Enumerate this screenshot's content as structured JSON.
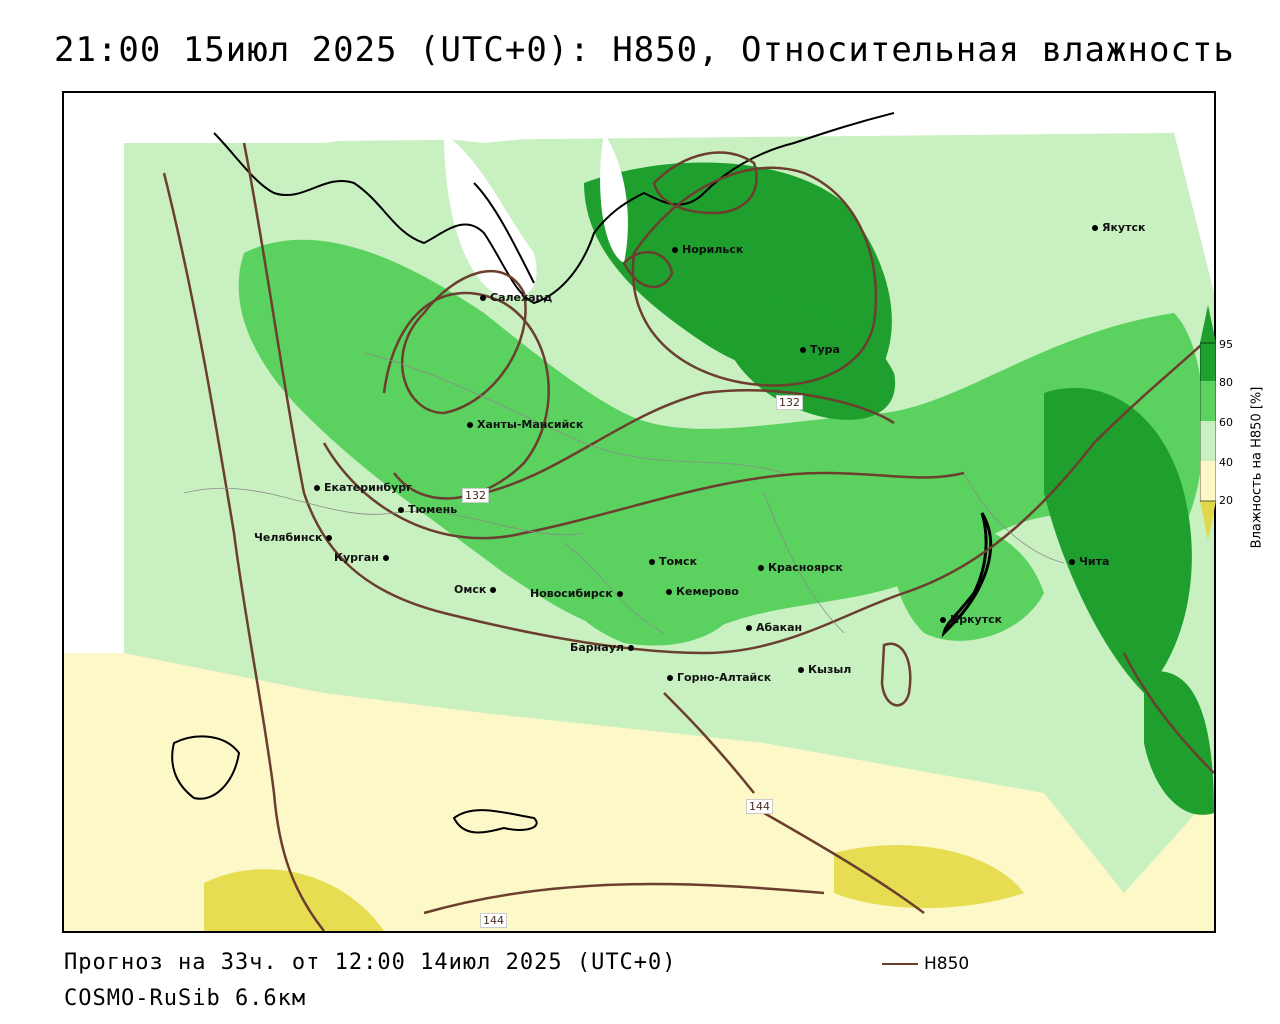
{
  "title": "21:00 15июл 2025 (UTC+0): H850, Относительная влажность",
  "forecast_text": "Прогноз на 33ч. от 12:00 14июл 2025 (UTC+0)",
  "model_text": "COSMO-RuSib 6.6км",
  "legend": {
    "label": "H850",
    "color": "#6b3e2e"
  },
  "colorbar": {
    "label": "Влажность на H850 [%]",
    "ticks": [
      "95",
      "80",
      "60",
      "40",
      "20"
    ],
    "colors": {
      "dry": "#e0d84a",
      "low": "#fdf8c8",
      "mid": "#ffffff",
      "moist": "#c8f0c0",
      "wet": "#5bd260",
      "very_wet": "#1e9f2e"
    }
  },
  "contour_labels": [
    "132",
    "132",
    "144",
    "144"
  ],
  "cities": [
    "Якутск",
    "Норильск",
    "Салехард",
    "Тура",
    "Ханты-Мансийск",
    "Екатеринбург",
    "Тюмень",
    "Челябинск",
    "Курган",
    "Омск",
    "Новосибирск",
    "Томск",
    "Кемерово",
    "Красноярск",
    "Барнаул",
    "Абакан",
    "Горно-Алтайск",
    "Кызыл",
    "Иркутск",
    "Чита"
  ]
}
